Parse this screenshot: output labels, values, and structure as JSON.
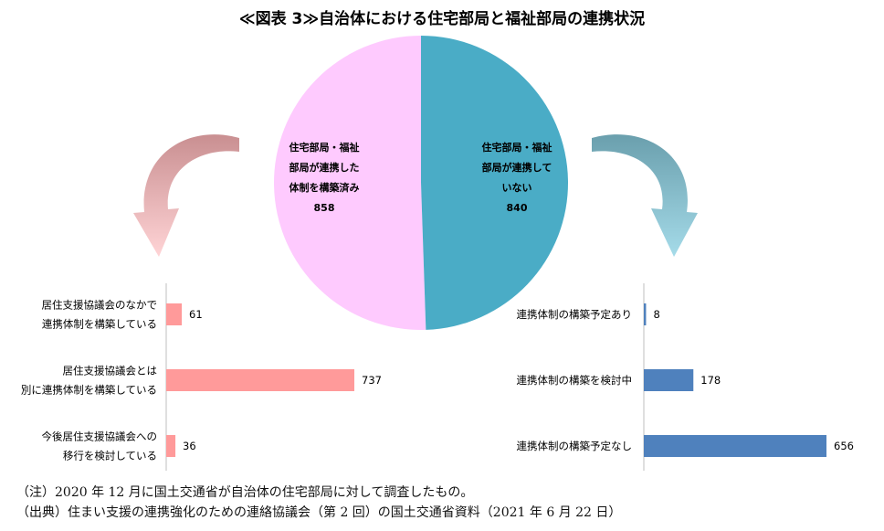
{
  "chart_data": [
    {
      "type": "pie",
      "title": "≪図表 3≫自治体における住宅部局と福祉部局の連携状況",
      "slices": [
        {
          "label_lines": [
            "住宅部局・福祉",
            "部局が連携した",
            "体制を構築済み"
          ],
          "value": 858,
          "color": "#fecafe"
        },
        {
          "label_lines": [
            "住宅部局・福祉",
            "部局が連携して",
            "いない"
          ],
          "value": 840,
          "color": "#4aacc6"
        }
      ]
    },
    {
      "type": "bar",
      "orientation": "horizontal",
      "categories": [
        [
          "居住支援協議会のなかで",
          "連携体制を構築している"
        ],
        [
          "居住支援協議会とは",
          "別に連携体制を構築している"
        ],
        [
          "今後居住支援協議会への",
          "移行を検討している"
        ]
      ],
      "values": [
        61,
        737,
        36
      ],
      "color": "#ff9a9a"
    },
    {
      "type": "bar",
      "orientation": "horizontal",
      "categories": [
        [
          "連携体制の構築予定あり"
        ],
        [
          "連携体制の構築を検討中"
        ],
        [
          "連携体制の構築予定なし"
        ]
      ],
      "values": [
        8,
        178,
        656
      ],
      "color": "#4f81bd"
    }
  ],
  "notes": [
    "（注）2020 年 12 月に国土交通省が自治体の住宅部局に対して調査したもの。",
    "（出典）住まい支援の連携強化のための連絡協議会（第 2 回）の国土交通省資料（2021 年 6 月 22 日）"
  ]
}
